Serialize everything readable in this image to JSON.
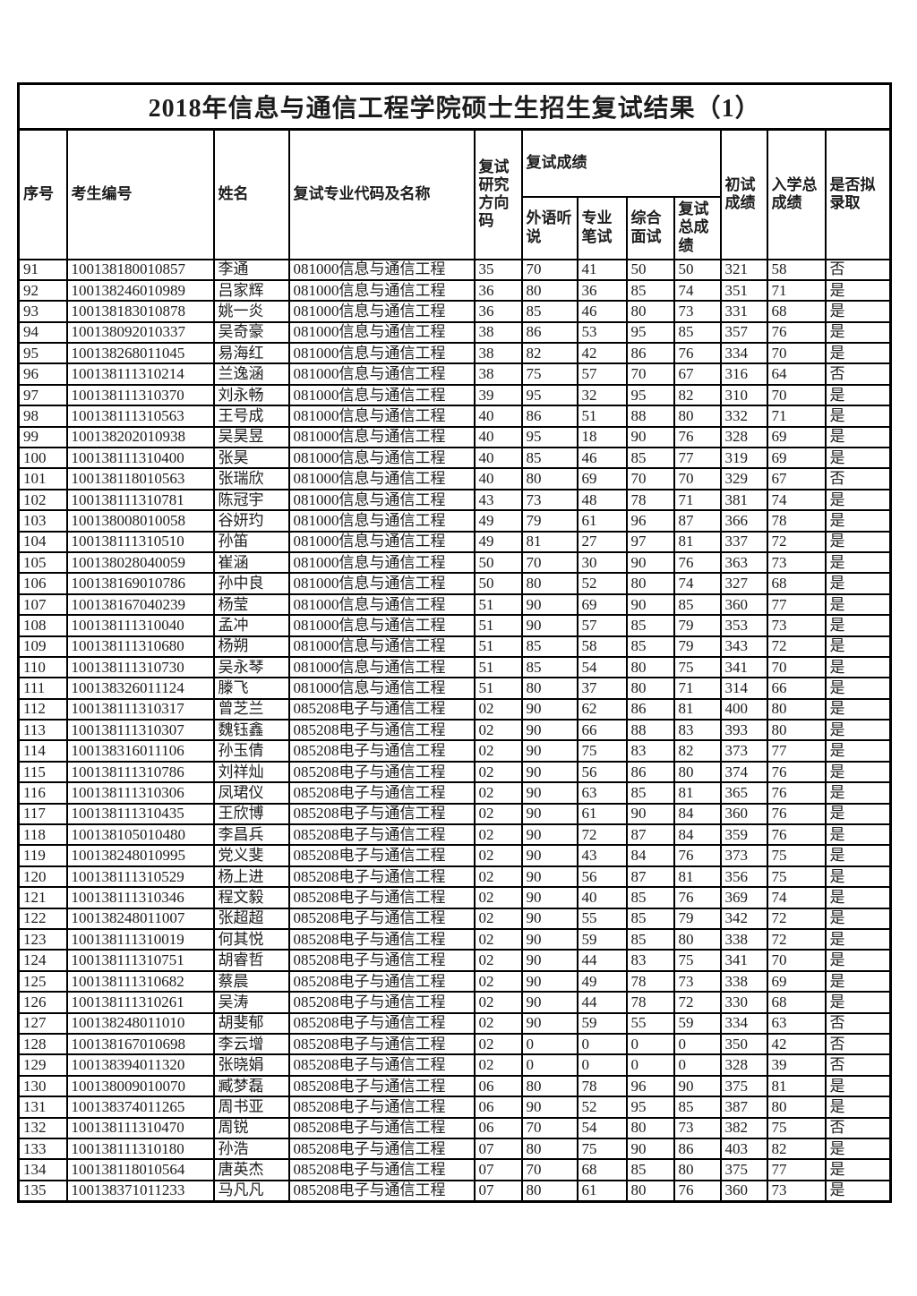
{
  "title": "2018年信息与通信工程学院硕士生招生复试结果（1）",
  "colors": {
    "border": "#000000",
    "text": "#1c1c1c",
    "background": "#ffffff"
  },
  "table": {
    "headers": {
      "serial": "序号",
      "candidate_id": "考生编号",
      "name": "姓名",
      "major": "复试专业代码及名称",
      "direction_code": "复试研究方向码",
      "retest_scores_group": "复试成绩",
      "foreign_listening": "外语听说",
      "written_test": "专业笔试",
      "interview": "综合面试",
      "retest_total": "复试总成绩",
      "initial_score": "初试成绩",
      "admission_total": "入学总成绩",
      "admitted": "是否拟录取"
    },
    "column_ids": [
      "serial",
      "candidate_id",
      "name",
      "major",
      "direction_code",
      "foreign_listening",
      "written_test",
      "interview",
      "retest_total",
      "initial_score",
      "admission_total",
      "admitted"
    ],
    "rows": [
      [
        "91",
        "100138180010857",
        "李通",
        "081000信息与通信工程",
        "35",
        "70",
        "41",
        "50",
        "50",
        "321",
        "58",
        "否"
      ],
      [
        "92",
        "100138246010989",
        "吕家辉",
        "081000信息与通信工程",
        "36",
        "80",
        "36",
        "85",
        "74",
        "351",
        "71",
        "是"
      ],
      [
        "93",
        "100138183010878",
        "姚一炎",
        "081000信息与通信工程",
        "36",
        "85",
        "46",
        "80",
        "73",
        "331",
        "68",
        "是"
      ],
      [
        "94",
        "100138092010337",
        "吴奇豪",
        "081000信息与通信工程",
        "38",
        "86",
        "53",
        "95",
        "85",
        "357",
        "76",
        "是"
      ],
      [
        "95",
        "100138268011045",
        "易海红",
        "081000信息与通信工程",
        "38",
        "82",
        "42",
        "86",
        "76",
        "334",
        "70",
        "是"
      ],
      [
        "96",
        "100138111310214",
        "兰逸涵",
        "081000信息与通信工程",
        "38",
        "75",
        "57",
        "70",
        "67",
        "316",
        "64",
        "否"
      ],
      [
        "97",
        "100138111310370",
        "刘永畅",
        "081000信息与通信工程",
        "39",
        "95",
        "32",
        "95",
        "82",
        "310",
        "70",
        "是"
      ],
      [
        "98",
        "100138111310563",
        "王号成",
        "081000信息与通信工程",
        "40",
        "86",
        "51",
        "88",
        "80",
        "332",
        "71",
        "是"
      ],
      [
        "99",
        "100138202010938",
        "吴昊昱",
        "081000信息与通信工程",
        "40",
        "95",
        "18",
        "90",
        "76",
        "328",
        "69",
        "是"
      ],
      [
        "100",
        "100138111310400",
        "张昊",
        "081000信息与通信工程",
        "40",
        "85",
        "46",
        "85",
        "77",
        "319",
        "69",
        "是"
      ],
      [
        "101",
        "100138118010563",
        "张瑞欣",
        "081000信息与通信工程",
        "40",
        "80",
        "69",
        "70",
        "70",
        "329",
        "67",
        "否"
      ],
      [
        "102",
        "100138111310781",
        "陈冠宇",
        "081000信息与通信工程",
        "43",
        "73",
        "48",
        "78",
        "71",
        "381",
        "74",
        "是"
      ],
      [
        "103",
        "100138008010058",
        "谷妍玓",
        "081000信息与通信工程",
        "49",
        "79",
        "61",
        "96",
        "87",
        "366",
        "78",
        "是"
      ],
      [
        "104",
        "100138111310510",
        "孙笛",
        "081000信息与通信工程",
        "49",
        "81",
        "27",
        "97",
        "81",
        "337",
        "72",
        "是"
      ],
      [
        "105",
        "100138028040059",
        "崔涵",
        "081000信息与通信工程",
        "50",
        "70",
        "30",
        "90",
        "76",
        "363",
        "73",
        "是"
      ],
      [
        "106",
        "100138169010786",
        "孙中良",
        "081000信息与通信工程",
        "50",
        "80",
        "52",
        "80",
        "74",
        "327",
        "68",
        "是"
      ],
      [
        "107",
        "100138167040239",
        "杨莹",
        "081000信息与通信工程",
        "51",
        "90",
        "69",
        "90",
        "85",
        "360",
        "77",
        "是"
      ],
      [
        "108",
        "100138111310040",
        "孟冲",
        "081000信息与通信工程",
        "51",
        "90",
        "57",
        "85",
        "79",
        "353",
        "73",
        "是"
      ],
      [
        "109",
        "100138111310680",
        "杨朔",
        "081000信息与通信工程",
        "51",
        "85",
        "58",
        "85",
        "79",
        "343",
        "72",
        "是"
      ],
      [
        "110",
        "100138111310730",
        "吴永琴",
        "081000信息与通信工程",
        "51",
        "85",
        "54",
        "80",
        "75",
        "341",
        "70",
        "是"
      ],
      [
        "111",
        "100138326011124",
        "滕飞",
        "081000信息与通信工程",
        "51",
        "80",
        "37",
        "80",
        "71",
        "314",
        "66",
        "是"
      ],
      [
        "112",
        "100138111310317",
        "曾芝兰",
        "085208电子与通信工程",
        "02",
        "90",
        "62",
        "86",
        "81",
        "400",
        "80",
        "是"
      ],
      [
        "113",
        "100138111310307",
        "魏钰鑫",
        "085208电子与通信工程",
        "02",
        "90",
        "66",
        "88",
        "83",
        "393",
        "80",
        "是"
      ],
      [
        "114",
        "100138316011106",
        "孙玉倩",
        "085208电子与通信工程",
        "02",
        "90",
        "75",
        "83",
        "82",
        "373",
        "77",
        "是"
      ],
      [
        "115",
        "100138111310786",
        "刘祥灿",
        "085208电子与通信工程",
        "02",
        "90",
        "56",
        "86",
        "80",
        "374",
        "76",
        "是"
      ],
      [
        "116",
        "100138111310306",
        "凤珺仪",
        "085208电子与通信工程",
        "02",
        "90",
        "63",
        "85",
        "81",
        "365",
        "76",
        "是"
      ],
      [
        "117",
        "100138111310435",
        "王欣博",
        "085208电子与通信工程",
        "02",
        "90",
        "61",
        "90",
        "84",
        "360",
        "76",
        "是"
      ],
      [
        "118",
        "100138105010480",
        "李昌兵",
        "085208电子与通信工程",
        "02",
        "90",
        "72",
        "87",
        "84",
        "359",
        "76",
        "是"
      ],
      [
        "119",
        "100138248010995",
        "党义斐",
        "085208电子与通信工程",
        "02",
        "90",
        "43",
        "84",
        "76",
        "373",
        "75",
        "是"
      ],
      [
        "120",
        "100138111310529",
        "杨上进",
        "085208电子与通信工程",
        "02",
        "90",
        "56",
        "87",
        "81",
        "356",
        "75",
        "是"
      ],
      [
        "121",
        "100138111310346",
        "程文毅",
        "085208电子与通信工程",
        "02",
        "90",
        "40",
        "85",
        "76",
        "369",
        "74",
        "是"
      ],
      [
        "122",
        "100138248011007",
        "张超超",
        "085208电子与通信工程",
        "02",
        "90",
        "55",
        "85",
        "79",
        "342",
        "72",
        "是"
      ],
      [
        "123",
        "100138111310019",
        "何其悦",
        "085208电子与通信工程",
        "02",
        "90",
        "59",
        "85",
        "80",
        "338",
        "72",
        "是"
      ],
      [
        "124",
        "100138111310751",
        "胡睿哲",
        "085208电子与通信工程",
        "02",
        "90",
        "44",
        "83",
        "75",
        "341",
        "70",
        "是"
      ],
      [
        "125",
        "100138111310682",
        "蔡晨",
        "085208电子与通信工程",
        "02",
        "90",
        "49",
        "78",
        "73",
        "338",
        "69",
        "是"
      ],
      [
        "126",
        "100138111310261",
        "吴涛",
        "085208电子与通信工程",
        "02",
        "90",
        "44",
        "78",
        "72",
        "330",
        "68",
        "是"
      ],
      [
        "127",
        "100138248011010",
        "胡斐郁",
        "085208电子与通信工程",
        "02",
        "90",
        "59",
        "55",
        "59",
        "334",
        "63",
        "否"
      ],
      [
        "128",
        "100138167010698",
        "李云增",
        "085208电子与通信工程",
        "02",
        "0",
        "0",
        "0",
        "0",
        "350",
        "42",
        "否"
      ],
      [
        "129",
        "100138394011320",
        "张晓娟",
        "085208电子与通信工程",
        "02",
        "0",
        "0",
        "0",
        "0",
        "328",
        "39",
        "否"
      ],
      [
        "130",
        "100138009010070",
        "臧梦磊",
        "085208电子与通信工程",
        "06",
        "80",
        "78",
        "96",
        "90",
        "375",
        "81",
        "是"
      ],
      [
        "131",
        "100138374011265",
        "周书亚",
        "085208电子与通信工程",
        "06",
        "90",
        "52",
        "95",
        "85",
        "387",
        "80",
        "是"
      ],
      [
        "132",
        "100138111310470",
        "周锐",
        "085208电子与通信工程",
        "06",
        "70",
        "54",
        "80",
        "73",
        "382",
        "75",
        "否"
      ],
      [
        "133",
        "100138111310180",
        "孙浩",
        "085208电子与通信工程",
        "07",
        "80",
        "75",
        "90",
        "86",
        "403",
        "82",
        "是"
      ],
      [
        "134",
        "100138118010564",
        "唐英杰",
        "085208电子与通信工程",
        "07",
        "70",
        "68",
        "85",
        "80",
        "375",
        "77",
        "是"
      ],
      [
        "135",
        "100138371011233",
        "马凡凡",
        "085208电子与通信工程",
        "07",
        "80",
        "61",
        "80",
        "76",
        "360",
        "73",
        "是"
      ]
    ]
  }
}
